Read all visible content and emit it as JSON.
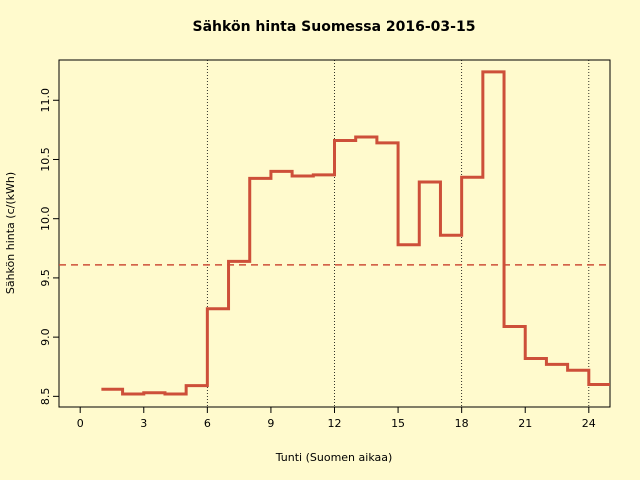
{
  "chart_data": {
    "type": "step",
    "title": "Sähkön hinta Suomessa 2016-03-15",
    "x_label": "Tunti (Suomen aikaa)",
    "y_label": "Sähkön hinta (c/(kWh)",
    "x": [
      1,
      2,
      3,
      4,
      5,
      6,
      7,
      8,
      9,
      10,
      11,
      12,
      13,
      14,
      15,
      16,
      17,
      18,
      19,
      20,
      21,
      22,
      23,
      24,
      25
    ],
    "values": [
      8.56,
      8.52,
      8.53,
      8.52,
      8.59,
      9.24,
      9.64,
      10.34,
      10.4,
      10.36,
      10.37,
      10.66,
      10.69,
      10.64,
      9.78,
      10.31,
      9.86,
      10.35,
      11.24,
      9.09,
      8.82,
      8.77,
      8.72,
      8.6,
      8.6
    ],
    "color": "#cd4f39",
    "mean_line": 9.61,
    "mean_color": "#cd4f39",
    "vlines": [
      6,
      12,
      18,
      24
    ],
    "xlim": [
      -1,
      25
    ],
    "ylim": [
      8.41,
      11.34
    ],
    "xticks": [
      0,
      3,
      6,
      9,
      12,
      15,
      18,
      21,
      24
    ],
    "yticks": [
      8.5,
      {
        "value": 9.0,
        "label": "9.0"
      },
      9.5,
      {
        "value": 10.0,
        "label": "10.0"
      },
      10.5,
      {
        "value": 11.0,
        "label": "11.0"
      }
    ]
  }
}
